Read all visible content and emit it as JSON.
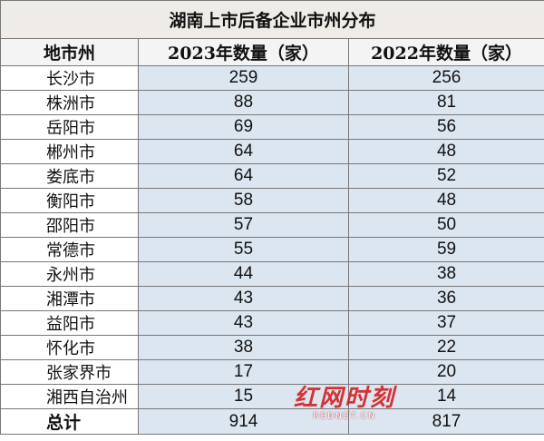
{
  "table": {
    "title": "湖南上市后备企业市州分布",
    "header": [
      "地市州",
      "2023年数量（家）",
      "2022年数量（家）"
    ],
    "rows": [
      [
        "长沙市",
        259,
        256
      ],
      [
        "株洲市",
        88,
        81
      ],
      [
        "岳阳市",
        69,
        56
      ],
      [
        "郴州市",
        64,
        48
      ],
      [
        "娄底市",
        64,
        52
      ],
      [
        "衡阳市",
        58,
        48
      ],
      [
        "邵阳市",
        57,
        50
      ],
      [
        "常德市",
        55,
        59
      ],
      [
        "永州市",
        44,
        38
      ],
      [
        "湘潭市",
        43,
        36
      ],
      [
        "益阳市",
        43,
        37
      ],
      [
        "怀化市",
        38,
        22
      ],
      [
        "张家界市",
        17,
        20
      ],
      [
        "湘西自治州",
        15,
        14
      ]
    ],
    "total": [
      "总计",
      914,
      817
    ]
  },
  "watermark": {
    "logo": "红网时刻",
    "site": "REDNET.CN"
  }
}
